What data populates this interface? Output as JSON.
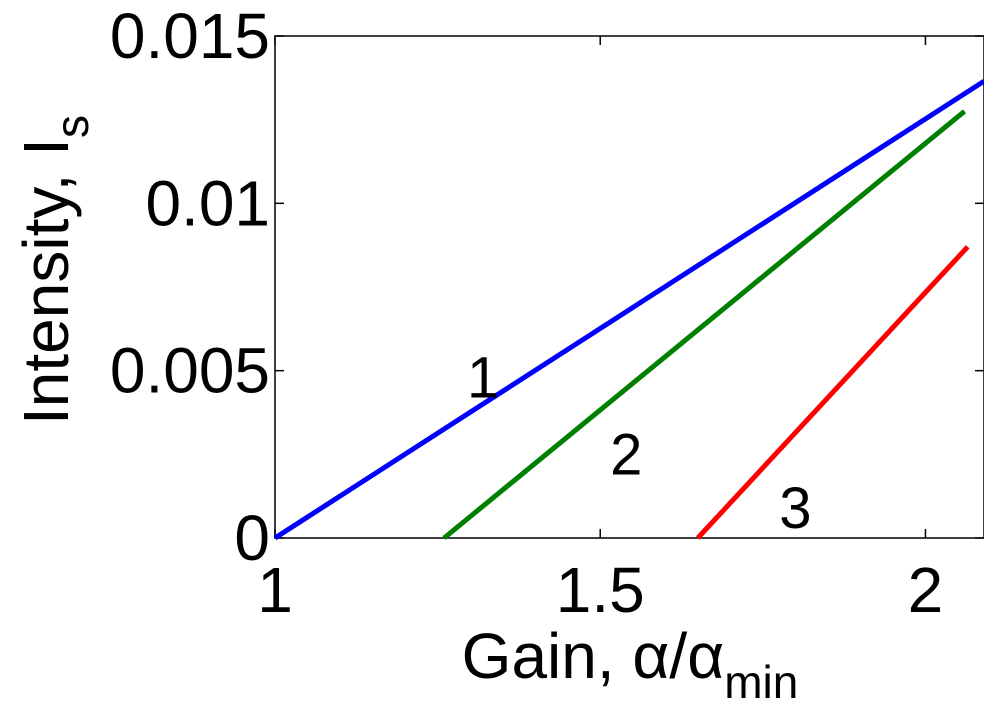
{
  "chart_data": {
    "type": "line",
    "title": "",
    "xlabel": {
      "main": "Gain, α/α",
      "sub": "min"
    },
    "ylabel": {
      "main": "Intensity, I",
      "sub": "s"
    },
    "xlim": [
      1,
      2.09
    ],
    "ylim": [
      0,
      0.015
    ],
    "x_ticks": [
      1,
      1.5,
      2
    ],
    "x_tick_labels": [
      "1",
      "1.5",
      "2"
    ],
    "y_ticks": [
      0,
      0.005,
      0.01,
      0.015
    ],
    "y_tick_labels": [
      "0",
      "0.005",
      "0.01",
      "0.015"
    ],
    "grid": false,
    "series": [
      {
        "label": "1",
        "color": "#0000ff",
        "x": [
          1.0,
          2.09
        ],
        "y": [
          0.0,
          0.01365
        ],
        "label_at": {
          "x": 1.32,
          "y": 0.0042
        }
      },
      {
        "label": "2",
        "color": "#008000",
        "x": [
          1.26,
          2.06
        ],
        "y": [
          0.0,
          0.01275
        ],
        "label_at": {
          "x": 1.54,
          "y": 0.0019
        }
      },
      {
        "label": "3",
        "color": "#ff0000",
        "x": [
          1.65,
          2.065
        ],
        "y": [
          0.0,
          0.0087
        ],
        "label_at": {
          "x": 1.8,
          "y": 0.0003
        }
      }
    ]
  }
}
